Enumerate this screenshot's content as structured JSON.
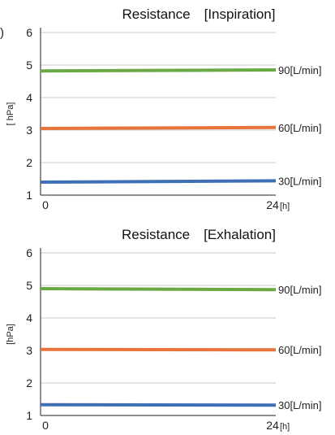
{
  "chart_data": [
    {
      "type": "line",
      "title": "Resistance　[Inspiration]",
      "ylabel": "[ hPa]",
      "xlabel": "",
      "x_ticks": [
        "0",
        "24"
      ],
      "x_unit": "[h]",
      "y_ticks": [
        "1",
        "2",
        "3",
        "4",
        "5",
        "6"
      ],
      "xlim": [
        0,
        24
      ],
      "ylim": [
        1,
        6
      ],
      "grid": true,
      "series": [
        {
          "name": "90[L/min]",
          "color": "#6aaa45",
          "x": [
            0,
            24
          ],
          "values": [
            4.82,
            4.85
          ]
        },
        {
          "name": "60[L/min]",
          "color": "#e8743b",
          "x": [
            0,
            24
          ],
          "values": [
            3.05,
            3.08
          ]
        },
        {
          "name": "30[L/min]",
          "color": "#3f6fb5",
          "x": [
            0,
            24
          ],
          "values": [
            1.4,
            1.44
          ]
        }
      ]
    },
    {
      "type": "line",
      "title": "Resistance　[Exhalation]",
      "ylabel": "[hPa]",
      "xlabel": "",
      "x_ticks": [
        "0",
        "24"
      ],
      "x_unit": "[h]",
      "y_ticks": [
        "1",
        "2",
        "3",
        "4",
        "5",
        "6"
      ],
      "xlim": [
        0,
        24
      ],
      "ylim": [
        1,
        6
      ],
      "grid": true,
      "series": [
        {
          "name": "90[L/min]",
          "color": "#6aaa45",
          "x": [
            0,
            24
          ],
          "values": [
            4.9,
            4.87
          ]
        },
        {
          "name": "60[L/min]",
          "color": "#e8743b",
          "x": [
            0,
            24
          ],
          "values": [
            3.03,
            3.02
          ]
        },
        {
          "name": "30[L/min]",
          "color": "#3f6fb5",
          "x": [
            0,
            24
          ],
          "values": [
            1.33,
            1.32
          ]
        }
      ]
    }
  ],
  "edge_glyph": ")"
}
